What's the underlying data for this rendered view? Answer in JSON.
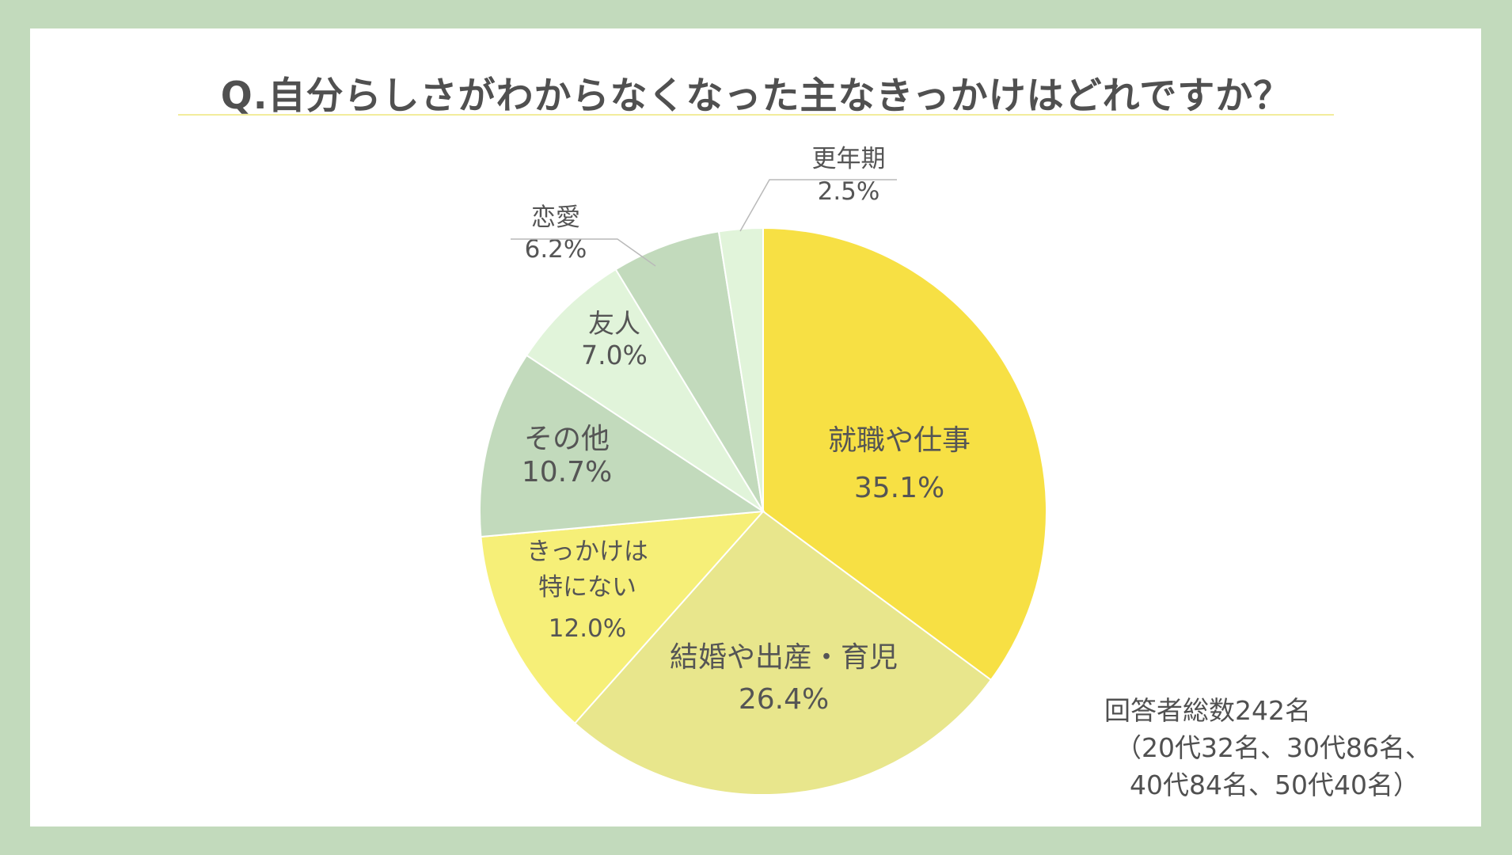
{
  "chart_data": {
    "type": "pie",
    "title": "Q.自分らしさがわからなくなった主なきっかけはどれですか？",
    "start": "12 o'clock",
    "direction": "clockwise",
    "slices": [
      {
        "label": "就職や仕事",
        "value": 35.1,
        "display": "35.1%",
        "color": "#f7e044"
      },
      {
        "label": "結婚や出産・育児",
        "value": 26.4,
        "display": "26.4%",
        "color": "#e8e68c"
      },
      {
        "label": "きっかけは特にない",
        "label_lines": [
          "きっかけは",
          "特にない"
        ],
        "value": 12.0,
        "display": "12.0%",
        "color": "#f6ef78"
      },
      {
        "label": "その他",
        "value": 10.7,
        "display": "10.7%",
        "color": "#c2dabc"
      },
      {
        "label": "友人",
        "value": 7.0,
        "display": "7.0%",
        "color": "#e1f4da"
      },
      {
        "label": "恋愛",
        "value": 6.2,
        "display": "6.2%",
        "color": "#c2dabc"
      },
      {
        "label": "更年期",
        "value": 2.5,
        "display": "2.5%",
        "color": "#e1f4da"
      }
    ]
  },
  "respondents": {
    "line1": "回答者総数242名",
    "line2": "（20代32名、30代86名、",
    "line3": "40代84名、50代40名）"
  }
}
